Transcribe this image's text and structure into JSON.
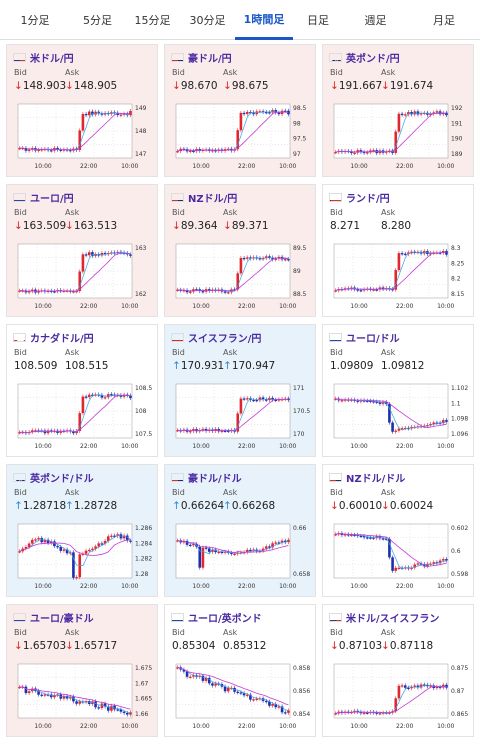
{
  "tabs": [
    {
      "label": "1分足",
      "active": false,
      "width": 70
    },
    {
      "label": "5分足",
      "active": false,
      "width": 55
    },
    {
      "label": "15分足",
      "active": false,
      "width": 55
    },
    {
      "label": "30分足",
      "active": false,
      "width": 55
    },
    {
      "label": "1時間足",
      "active": true,
      "width": 58
    },
    {
      "label": "日足",
      "active": false,
      "width": 50
    },
    {
      "label": "週足",
      "active": false,
      "width": 65
    },
    {
      "label": "月足",
      "active": false,
      "width": 72
    }
  ],
  "labels": {
    "bid": "Bid",
    "ask": "Ask"
  },
  "cards": [
    {
      "pair": "米ドル/円",
      "flag": "us",
      "bg": "red",
      "dir": "down",
      "bid": "148.903",
      "ask": "148.905",
      "chart": {
        "yticks": [
          "149",
          "148",
          "147"
        ],
        "xticks": [
          "10:00",
          "22:00",
          "10:00"
        ],
        "shape": "spike",
        "y_start": 147.2,
        "y_end": 149.0,
        "y_min": 146.8,
        "y_max": 149.3
      }
    },
    {
      "pair": "豪ドル/円",
      "flag": "au",
      "bg": "red",
      "dir": "down",
      "bid": "98.670",
      "ask": "98.675",
      "chart": {
        "yticks": [
          "98.5",
          "98",
          "97.5",
          "97"
        ],
        "xticks": [
          "10:00",
          "22:00",
          "10:00"
        ],
        "shape": "spike",
        "y_start": 97.1,
        "y_end": 98.6,
        "y_min": 96.8,
        "y_max": 98.8
      }
    },
    {
      "pair": "英ポンド/円",
      "flag": "gb",
      "bg": "red",
      "dir": "down",
      "bid": "191.667",
      "ask": "191.674",
      "chart": {
        "yticks": [
          "192",
          "191",
          "190",
          "189"
        ],
        "xticks": [
          "10:00",
          "22:00",
          "10:00"
        ],
        "shape": "spike",
        "y_start": 189.2,
        "y_end": 191.8,
        "y_min": 188.8,
        "y_max": 192.2
      }
    },
    {
      "pair": "ユーロ/円",
      "flag": "eu",
      "bg": "red",
      "dir": "down",
      "bid": "163.509",
      "ask": "163.513",
      "chart": {
        "yticks": [
          "163",
          "162"
        ],
        "xticks": [
          "10:00",
          "22:00",
          "10:00"
        ],
        "shape": "spike",
        "y_start": 161.8,
        "y_end": 163.5,
        "y_min": 161.5,
        "y_max": 163.8
      }
    },
    {
      "pair": "NZドル/円",
      "flag": "nz",
      "bg": "red",
      "dir": "down",
      "bid": "89.364",
      "ask": "89.371",
      "chart": {
        "yticks": [
          "89.5",
          "89",
          "88.5"
        ],
        "xticks": [
          "10:00",
          "22:00",
          "10:00"
        ],
        "shape": "spike",
        "y_start": 88.3,
        "y_end": 89.3,
        "y_min": 88.1,
        "y_max": 89.6
      }
    },
    {
      "pair": "ランド/円",
      "flag": "za",
      "bg": "white",
      "dir": "none",
      "bid": "8.271",
      "ask": "8.280",
      "chart": {
        "yticks": [
          "8.3",
          "8.25",
          "8.2",
          "8.15"
        ],
        "xticks": [
          "10:00",
          "22:00",
          "10:00"
        ],
        "shape": "spike",
        "y_start": 8.16,
        "y_end": 8.29,
        "y_min": 8.13,
        "y_max": 8.31
      }
    },
    {
      "pair": "カナダドル/円",
      "flag": "ca",
      "bg": "white",
      "dir": "none",
      "bid": "108.509",
      "ask": "108.515",
      "chart": {
        "yticks": [
          "108.5",
          "108",
          "107.5"
        ],
        "xticks": [
          "10:00",
          "22:00",
          "10:00"
        ],
        "shape": "spike",
        "y_start": 107.3,
        "y_end": 108.5,
        "y_min": 107.1,
        "y_max": 108.8
      }
    },
    {
      "pair": "スイスフラン/円",
      "flag": "ch",
      "bg": "blue",
      "dir": "up",
      "bid": "170.931",
      "ask": "170.947",
      "chart": {
        "yticks": [
          "171",
          "170.5",
          "170"
        ],
        "xticks": [
          "10:00",
          "22:00",
          "10:00"
        ],
        "shape": "spike",
        "y_start": 170.0,
        "y_end": 170.9,
        "y_min": 169.8,
        "y_max": 171.2
      }
    },
    {
      "pair": "ユーロ/ドル",
      "flag": "eu",
      "bg": "white",
      "dir": "none",
      "bid": "1.09809",
      "ask": "1.09812",
      "chart": {
        "yticks": [
          "1.102",
          "1.1",
          "1.098",
          "1.096"
        ],
        "xticks": [
          "10:00",
          "22:00",
          "10:00"
        ],
        "shape": "drop",
        "y_start": 1.1005,
        "y_end": 1.0975,
        "y_min": 1.0955,
        "y_max": 1.1025
      }
    },
    {
      "pair": "英ポンド/ドル",
      "flag": "gb",
      "bg": "blue",
      "dir": "up",
      "bid": "1.28718",
      "ask": "1.28728",
      "chart": {
        "yticks": [
          "1.286",
          "1.284",
          "1.282",
          "1.28"
        ],
        "xticks": [
          "10:00",
          "22:00",
          "10:00"
        ],
        "shape": "wavy",
        "y_start": 1.2835,
        "y_end": 1.286,
        "y_min": 1.2795,
        "y_max": 1.287
      }
    },
    {
      "pair": "豪ドル/ドル",
      "flag": "au",
      "bg": "blue",
      "dir": "up",
      "bid": "0.66264",
      "ask": "0.66268",
      "chart": {
        "yticks": [
          "0.66",
          "0.658"
        ],
        "xticks": [
          "10:00",
          "22:00",
          "10:00"
        ],
        "shape": "vee",
        "y_start": 0.661,
        "y_end": 0.6618,
        "y_min": 0.6572,
        "y_max": 0.6625
      }
    },
    {
      "pair": "NZドル/ドル",
      "flag": "nz",
      "bg": "white",
      "dir": "down",
      "bid": "0.60010",
      "ask": "0.60024",
      "chart": {
        "yticks": [
          "0.602",
          "0.6",
          "0.598"
        ],
        "xticks": [
          "10:00",
          "22:00",
          "10:00"
        ],
        "shape": "drop",
        "y_start": 0.6018,
        "y_end": 0.5995,
        "y_min": 0.5975,
        "y_max": 0.6028
      }
    },
    {
      "pair": "ユーロ/豪ドル",
      "flag": "eu",
      "bg": "red",
      "dir": "down",
      "bid": "1.65703",
      "ask": "1.65717",
      "chart": {
        "yticks": [
          "1.675",
          "1.67",
          "1.665",
          "1.66"
        ],
        "xticks": [
          "10:00",
          "22:00",
          "10:00"
        ],
        "shape": "decline",
        "y_start": 1.667,
        "y_end": 1.6575,
        "y_min": 1.6555,
        "y_max": 1.6765
      }
    },
    {
      "pair": "ユーロ/英ポンド",
      "flag": "eu",
      "bg": "white",
      "dir": "none",
      "bid": "0.85304",
      "ask": "0.85312",
      "chart": {
        "yticks": [
          "0.858",
          "0.856",
          "0.854"
        ],
        "xticks": [
          "10:00",
          "22:00",
          "10:00"
        ],
        "shape": "decline",
        "y_start": 0.8578,
        "y_end": 0.8532,
        "y_min": 0.8525,
        "y_max": 0.8585
      }
    },
    {
      "pair": "米ドル/スイスフラン",
      "flag": "us",
      "bg": "white",
      "dir": "down",
      "bid": "0.87103",
      "ask": "0.87118",
      "chart": {
        "yticks": [
          "0.875",
          "0.87",
          "0.865"
        ],
        "xticks": [
          "10:00",
          "22:00",
          "10:00"
        ],
        "shape": "spike",
        "y_start": 0.8648,
        "y_end": 0.8715,
        "y_min": 0.8635,
        "y_max": 0.876
      }
    }
  ]
}
